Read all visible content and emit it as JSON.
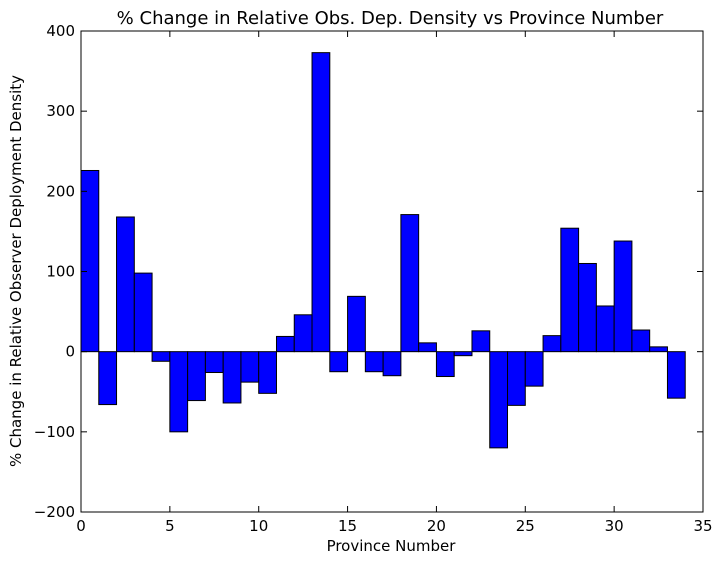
{
  "chart_data": {
    "type": "bar",
    "title": "% Change in Relative Obs. Dep. Density vs Province Number",
    "xlabel": "Province Number",
    "ylabel": "% Change in Relative Observer Deployment Density",
    "xlim": [
      0,
      35
    ],
    "ylim": [
      -200,
      400
    ],
    "xticks": [
      0,
      5,
      10,
      15,
      20,
      25,
      30,
      35
    ],
    "yticks": [
      -200,
      -100,
      0,
      100,
      200,
      300,
      400
    ],
    "bar_width": 1,
    "grid": false,
    "bar_color": "#0000ff",
    "x": [
      0,
      1,
      2,
      3,
      4,
      5,
      6,
      7,
      8,
      9,
      10,
      11,
      12,
      13,
      14,
      15,
      16,
      17,
      18,
      19,
      20,
      21,
      22,
      23,
      24,
      25,
      26,
      27,
      28,
      29,
      30,
      31,
      32,
      33
    ],
    "values": [
      226,
      -66,
      168,
      98,
      -12,
      -100,
      -61,
      -26,
      -64,
      -38,
      -52,
      19,
      46,
      373,
      -25,
      69,
      -25,
      -30,
      171,
      11,
      -31,
      -5,
      26,
      -120,
      -67,
      -43,
      20,
      154,
      110,
      57,
      138,
      27,
      6,
      -58
    ]
  }
}
